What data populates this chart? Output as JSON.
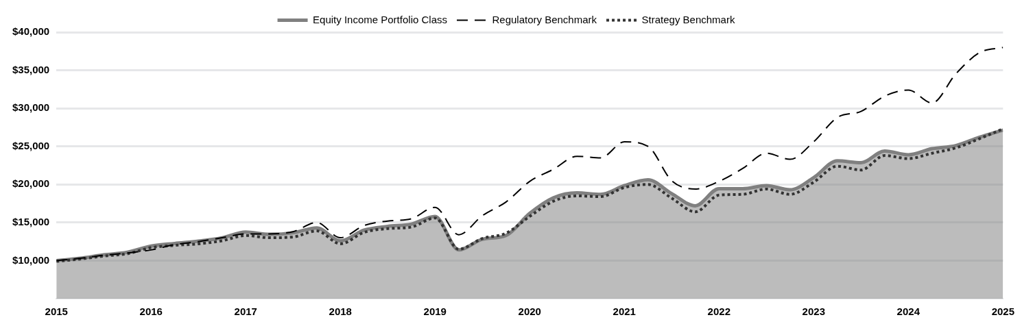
{
  "chart_data": {
    "type": "line",
    "x": [
      2015,
      2015.25,
      2015.5,
      2015.75,
      2016,
      2016.25,
      2016.5,
      2016.75,
      2017,
      2017.25,
      2017.5,
      2017.75,
      2018,
      2018.25,
      2018.5,
      2018.75,
      2019,
      2019.25,
      2019.5,
      2019.75,
      2020,
      2020.25,
      2020.5,
      2020.75,
      2021,
      2021.25,
      2021.5,
      2021.75,
      2022,
      2022.25,
      2022.5,
      2022.75,
      2023,
      2023.25,
      2023.5,
      2023.75,
      2024,
      2024.25,
      2024.5,
      2024.75,
      2025
    ],
    "series": [
      {
        "name": "Equity Income Portfolio Class",
        "type": "area",
        "color": "#808080",
        "line_style": "solid",
        "values": [
          10000,
          10300,
          10750,
          11100,
          11900,
          12250,
          12550,
          13000,
          13750,
          13450,
          13650,
          14300,
          12600,
          14000,
          14500,
          14800,
          15800,
          11400,
          12800,
          13300,
          16200,
          18250,
          18900,
          18700,
          19850,
          20600,
          18800,
          17200,
          19450,
          19450,
          19850,
          19300,
          20900,
          23100,
          22850,
          24400,
          23900,
          24700,
          25100,
          26200,
          27150
        ]
      },
      {
        "name": "Regulatory Benchmark",
        "color": "#000000",
        "line_style": "dashed",
        "values": [
          10000,
          10300,
          10700,
          11000,
          11400,
          12100,
          12500,
          13000,
          13500,
          13500,
          13800,
          15000,
          13000,
          14600,
          15200,
          15500,
          17000,
          13400,
          15900,
          17700,
          20400,
          22000,
          23700,
          23500,
          25600,
          25000,
          20500,
          19400,
          20400,
          22100,
          24100,
          23300,
          25600,
          28800,
          29600,
          31600,
          32400,
          30700,
          34500,
          37300,
          38000
        ]
      },
      {
        "name": "Strategy Benchmark",
        "color": "#333333",
        "line_style": "dotted",
        "values": [
          9900,
          10200,
          10600,
          10900,
          11700,
          12000,
          12200,
          12600,
          13300,
          13000,
          13100,
          13900,
          12200,
          13700,
          14200,
          14400,
          15600,
          11500,
          12900,
          13600,
          15800,
          17800,
          18500,
          18400,
          19600,
          20000,
          18200,
          16400,
          18600,
          18700,
          19400,
          18700,
          20300,
          22400,
          21900,
          23800,
          23400,
          24100,
          24800,
          26000,
          27300
        ]
      }
    ],
    "xlim": [
      2015,
      2025
    ],
    "xticks": [
      2015,
      2016,
      2017,
      2018,
      2019,
      2020,
      2021,
      2022,
      2023,
      2024,
      2025
    ],
    "ylim": [
      5000,
      40000
    ],
    "yticks": [
      {
        "value": 10000,
        "label": "$10,000"
      },
      {
        "value": 15000,
        "label": "$15,000"
      },
      {
        "value": 20000,
        "label": "$20,000"
      },
      {
        "value": 25000,
        "label": "$25,000"
      },
      {
        "value": 30000,
        "label": "$30,000"
      },
      {
        "value": 35000,
        "label": "$35,000"
      },
      {
        "value": 40000,
        "label": "$40,000"
      }
    ],
    "grid": "y",
    "legend": "top",
    "marker": "none"
  }
}
